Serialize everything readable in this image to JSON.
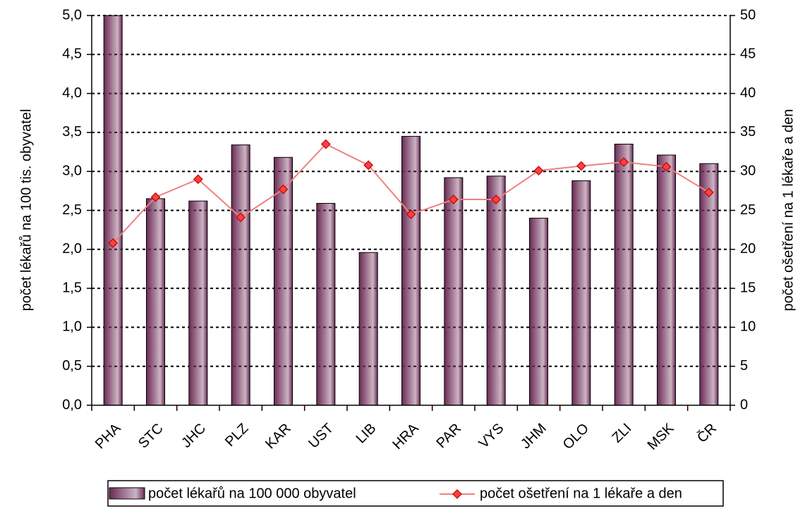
{
  "chart_data": {
    "type": "bar_line",
    "y_label": "počet lékařů na 100 tis. obyvatel",
    "y2_label": "počet ošetření na 1 lékaře a den",
    "categories": [
      "PHA",
      "STC",
      "JHC",
      "PLZ",
      "KAR",
      "UST",
      "LIB",
      "HRA",
      "PAR",
      "VYS",
      "JHM",
      "OLO",
      "ZLI",
      "MSK",
      "ČR"
    ],
    "series": [
      {
        "name": "počet lékařů na 100 000 obyvatel",
        "color": "#6b2a55",
        "type": "bar",
        "values": [
          5.0,
          2.65,
          2.62,
          3.34,
          3.18,
          2.59,
          1.96,
          3.45,
          2.92,
          2.94,
          2.4,
          2.88,
          3.35,
          3.21,
          3.1
        ]
      },
      {
        "name": "počet ošetření na 1 lékaře a den",
        "color": "#f08080",
        "marker_color": "#ff4040",
        "type": "line",
        "axis": "y2",
        "values": [
          20.8,
          26.7,
          29.0,
          24.1,
          27.7,
          33.5,
          30.8,
          24.5,
          26.4,
          26.4,
          30.1,
          30.7,
          31.2,
          30.6,
          27.3
        ]
      }
    ],
    "ylim": [
      0,
      5
    ],
    "yticks": [
      {
        "value": 0,
        "label": "0,0"
      },
      {
        "value": 0.5,
        "label": "0,5"
      },
      {
        "value": 1,
        "label": "1,0"
      },
      {
        "value": 1.5,
        "label": "1,5"
      },
      {
        "value": 2,
        "label": "2,0"
      },
      {
        "value": 2.5,
        "label": "2,5"
      },
      {
        "value": 3,
        "label": "3,0"
      },
      {
        "value": 3.5,
        "label": "3,5"
      },
      {
        "value": 4,
        "label": "4,0"
      },
      {
        "value": 4.5,
        "label": "4,5"
      },
      {
        "value": 5,
        "label": "5,0"
      }
    ],
    "y2lim": [
      0,
      50
    ],
    "y2ticks": [
      0,
      5,
      10,
      15,
      20,
      25,
      30,
      35,
      40,
      45,
      50
    ],
    "grid": true,
    "legend": "bottom"
  }
}
